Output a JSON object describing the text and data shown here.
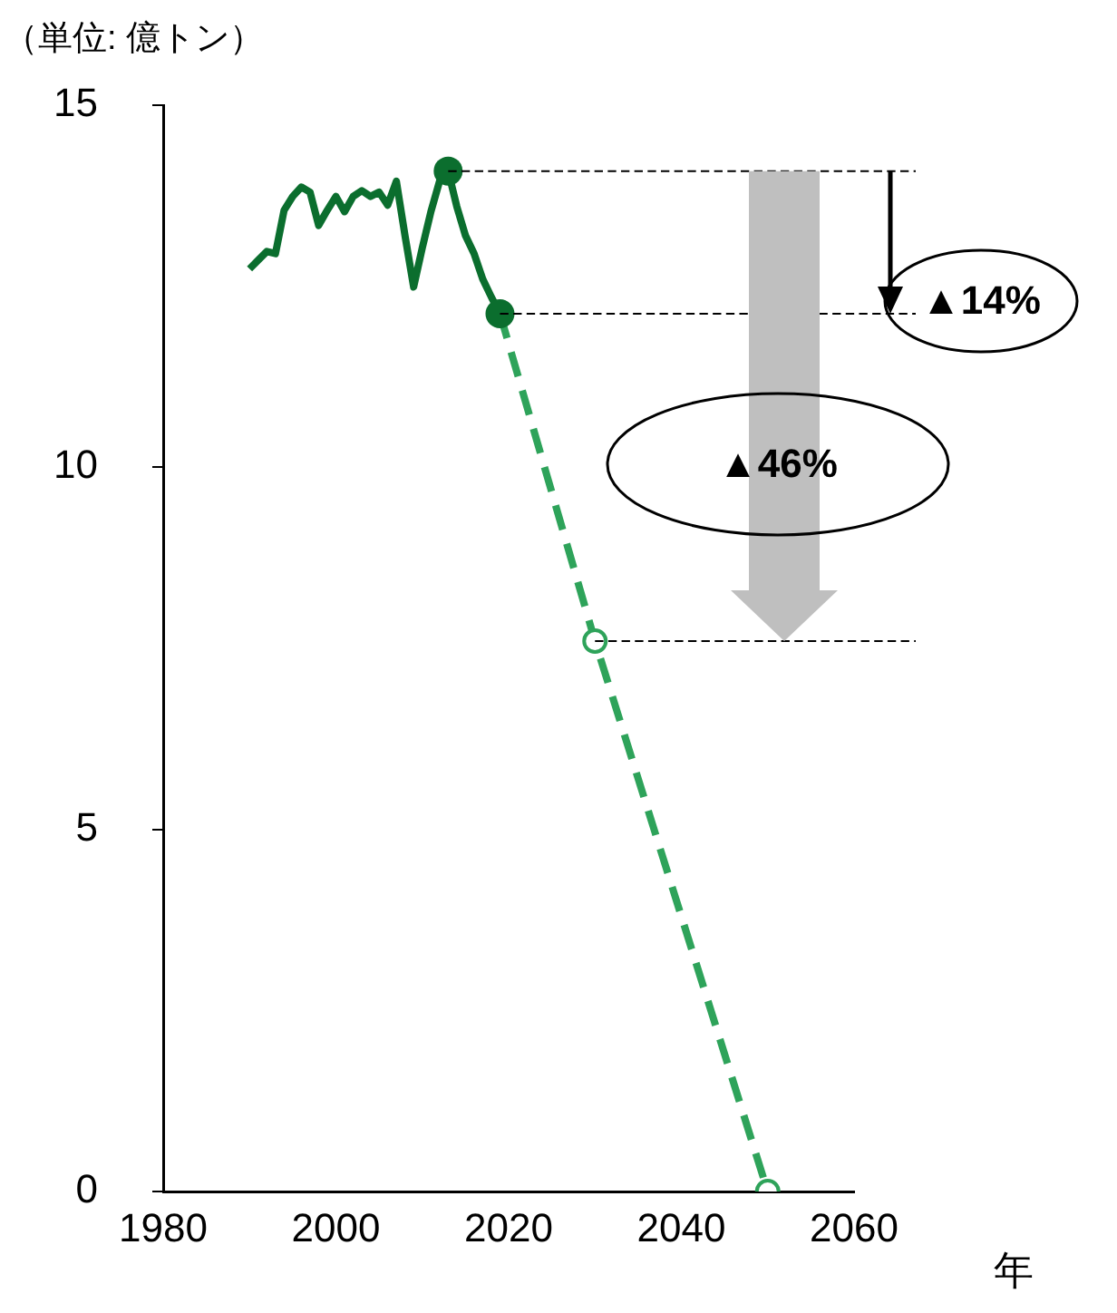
{
  "chart_data": {
    "type": "line",
    "ylabel": "（単位: 億トン）",
    "xlabel": "年",
    "xlim": [
      1980,
      2060
    ],
    "xticks": [
      1980,
      2000,
      2020,
      2040,
      2060
    ],
    "ylim": [
      0,
      15
    ],
    "yticks": [
      0,
      5,
      10,
      15
    ],
    "grid": false,
    "legend": false,
    "series": [
      {
        "type": "line",
        "color": "#0b6e2e",
        "marker": "none",
        "x": [
          1990,
          1991,
          1992,
          1993,
          1994,
          1995,
          1996,
          1997,
          1998,
          1999,
          2000,
          2001,
          2002,
          2003,
          2004,
          2005,
          2006,
          2007,
          2008,
          2009,
          2010,
          2011,
          2012,
          2013,
          2014,
          2015,
          2016,
          2017,
          2018,
          2019
        ],
        "values": [
          12.74,
          12.86,
          12.98,
          12.95,
          13.55,
          13.74,
          13.87,
          13.8,
          13.34,
          13.55,
          13.74,
          13.53,
          13.74,
          13.82,
          13.74,
          13.8,
          13.62,
          13.95,
          13.2,
          12.49,
          13.03,
          13.53,
          13.95,
          14.09,
          13.6,
          13.2,
          12.95,
          12.6,
          12.35,
          12.12
        ]
      },
      {
        "type": "line",
        "color": "#2ea35a",
        "line_style": "dashed",
        "marker": "circle",
        "x": [
          2019,
          2030,
          2050
        ],
        "values": [
          12.12,
          7.6,
          0
        ]
      },
      {
        "type": "scatter",
        "color": "#0b6e2e",
        "marker": "circle",
        "x": [
          2013,
          2019
        ],
        "values": [
          14.09,
          12.12
        ]
      }
    ],
    "ref_lines": [
      {
        "axis": "y",
        "value": 14.09,
        "color": "#000000",
        "line_style": "dashed"
      },
      {
        "axis": "y",
        "value": 12.12,
        "color": "#000000",
        "line_style": "dashed"
      },
      {
        "axis": "y",
        "value": 7.6,
        "color": "#000000",
        "line_style": "dashed"
      }
    ],
    "annotations": [
      "▲14%",
      "▲46%"
    ]
  }
}
